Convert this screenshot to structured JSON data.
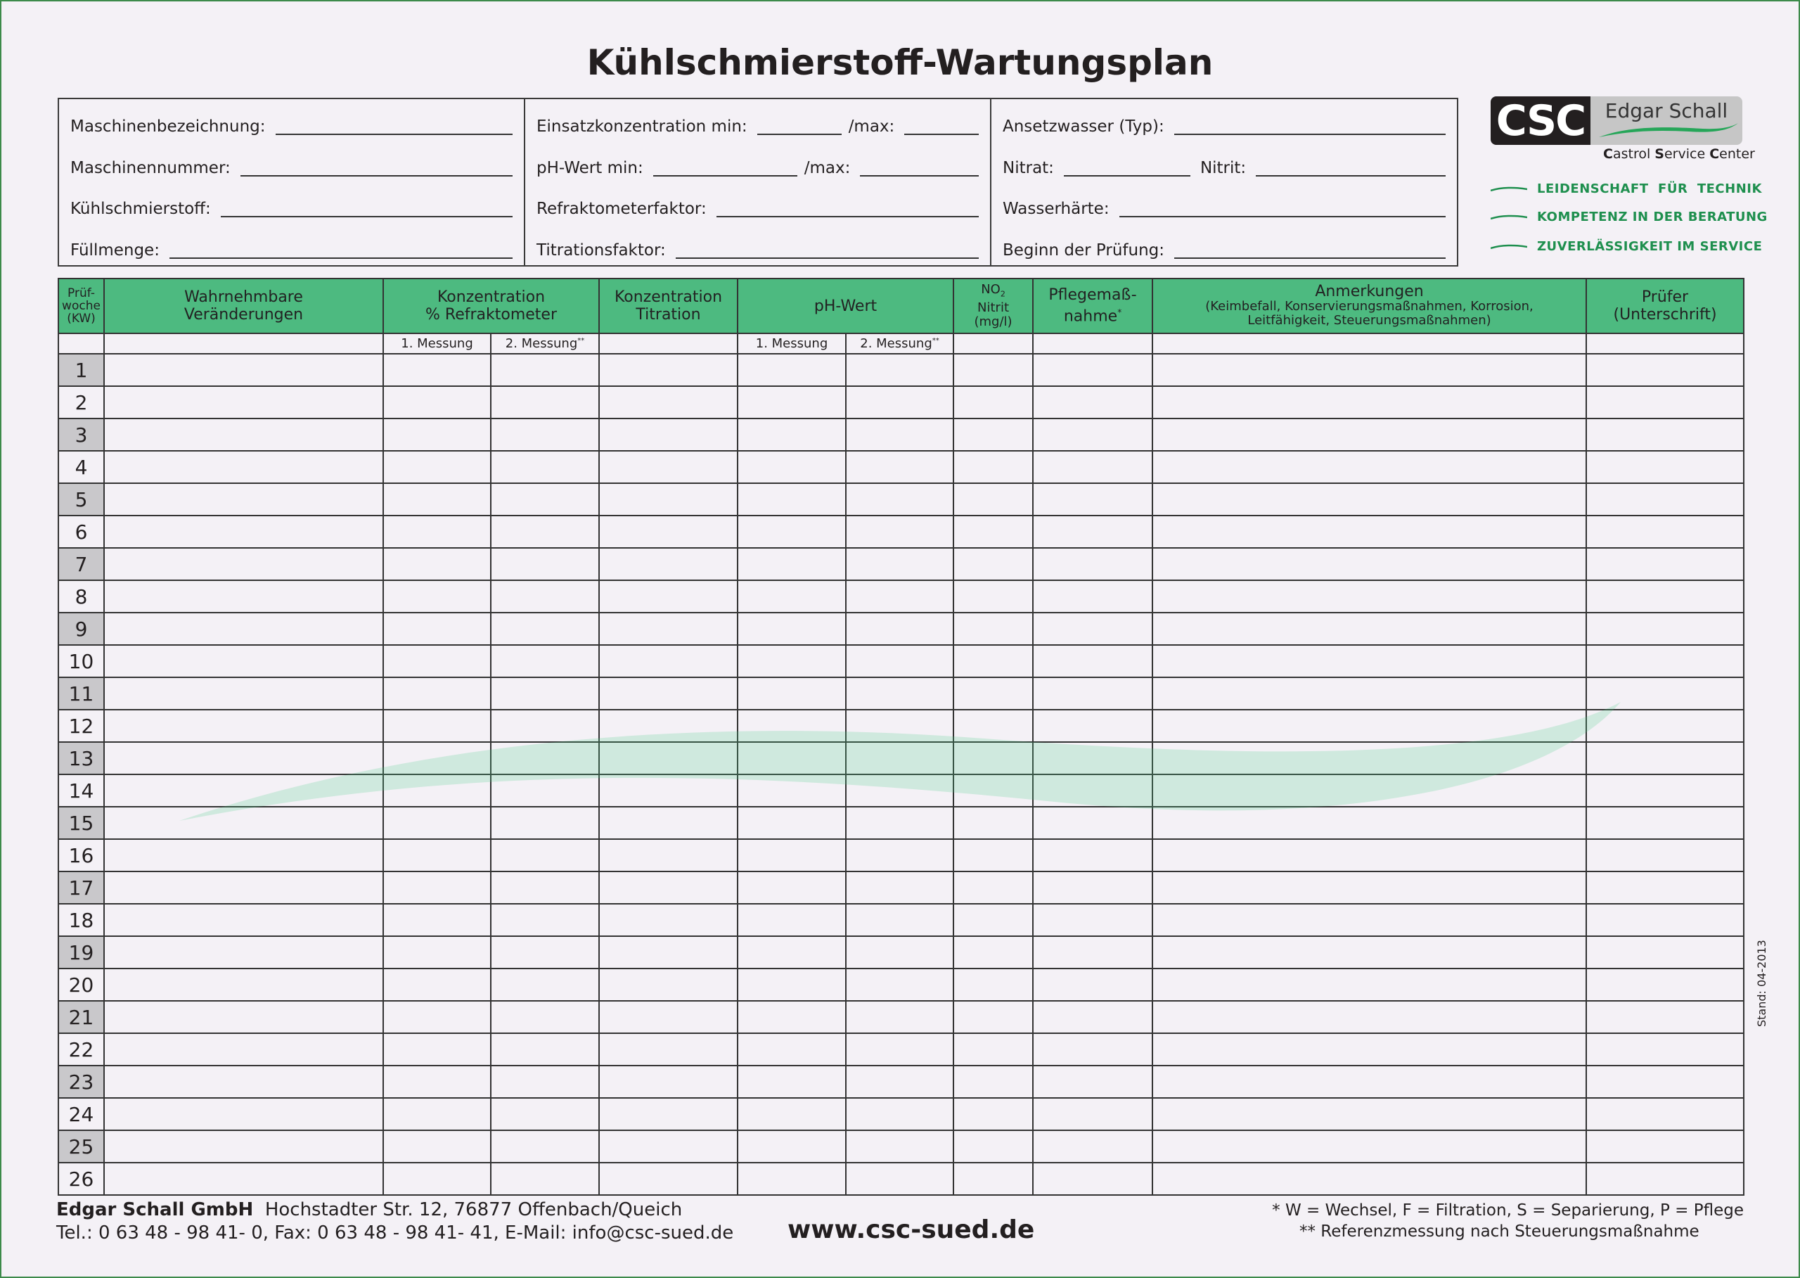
{
  "title": "Kühlschmierstoff-Wartungsplan",
  "info": {
    "col1": [
      "Maschinenbezeichnung:",
      "Maschinennummer:",
      "Kühlschmierstoff:",
      "Füllmenge:"
    ],
    "col2": {
      "einsatz": "Einsatzkonzentration min:",
      "ph": "pH-Wert min:",
      "max": "/max:",
      "refrakt": "Refraktometerfaktor:",
      "titration": "Titrationsfaktor:"
    },
    "col3": {
      "ansetz": "Ansetzwasser (Typ):",
      "nitrat": "Nitrat:",
      "nitrit": "Nitrit:",
      "haerte": "Wasserhärte:",
      "beginn": "Beginn der Prüfung:"
    }
  },
  "logo": {
    "csc": "CSC",
    "name": "Edgar Schall",
    "castrol_c1": "C",
    "castrol_r1": "astrol ",
    "castrol_c2": "S",
    "castrol_r2": "ervice ",
    "castrol_c3": "C",
    "castrol_r3": "enter"
  },
  "slogans": [
    "LEIDENSCHAFT  FÜR  TECHNIK",
    "KOMPETENZ IN DER BERATUNG",
    "ZUVERLÄSSIGKEIT IM SERVICE"
  ],
  "table": {
    "headers": {
      "week": [
        "Prüf-",
        "woche",
        "(KW)"
      ],
      "changes": [
        "Wahrnehmbare",
        "Veränderungen"
      ],
      "konz_ref": [
        "Konzentration",
        "% Refraktometer"
      ],
      "konz_tit": [
        "Konzentration",
        "Titration"
      ],
      "ph": "pH-Wert",
      "no2": [
        "NO",
        "2",
        "Nitrit",
        "(mg/l)"
      ],
      "pflege": [
        "Pflegemaß-",
        "nahme",
        "*"
      ],
      "anmerk": [
        "Anmerkungen",
        "(Keimbefall, Konservierungsmaßnahmen, Korrosion,",
        "Leitfähigkeit, Steuerungsmaßnahmen)"
      ],
      "pruefer": [
        "Prüfer",
        "(Unterschrift)"
      ]
    },
    "sub": {
      "m1": "1. Messung",
      "m2": "2. Messung",
      "m2_mark": "**"
    },
    "weeks": [
      "1",
      "2",
      "3",
      "4",
      "5",
      "6",
      "7",
      "8",
      "9",
      "10",
      "11",
      "12",
      "13",
      "14",
      "15",
      "16",
      "17",
      "18",
      "19",
      "20",
      "21",
      "22",
      "23",
      "24",
      "25",
      "26"
    ]
  },
  "footer": {
    "company": "Edgar Schall GmbH",
    "address": "Hochstadter Str. 12, 76877 Offenbach/Queich",
    "contact": "Tel.: 0 63 48 - 98 41- 0, Fax: 0 63 48 - 98 41- 41, E-Mail: info@csc-sued.de",
    "website": "www.csc-sued.de",
    "note1": "* W = Wechsel, F = Filtration, S = Separierung, P = Pflege",
    "note2": "** Referenzmessung nach Steuerungsmaßnahme",
    "stand": "Stand: 04-2013"
  },
  "colors": {
    "header_green": "#4dba80",
    "brand_green": "#1e8f4e",
    "odd_week_gray": "#c9c8cb"
  }
}
